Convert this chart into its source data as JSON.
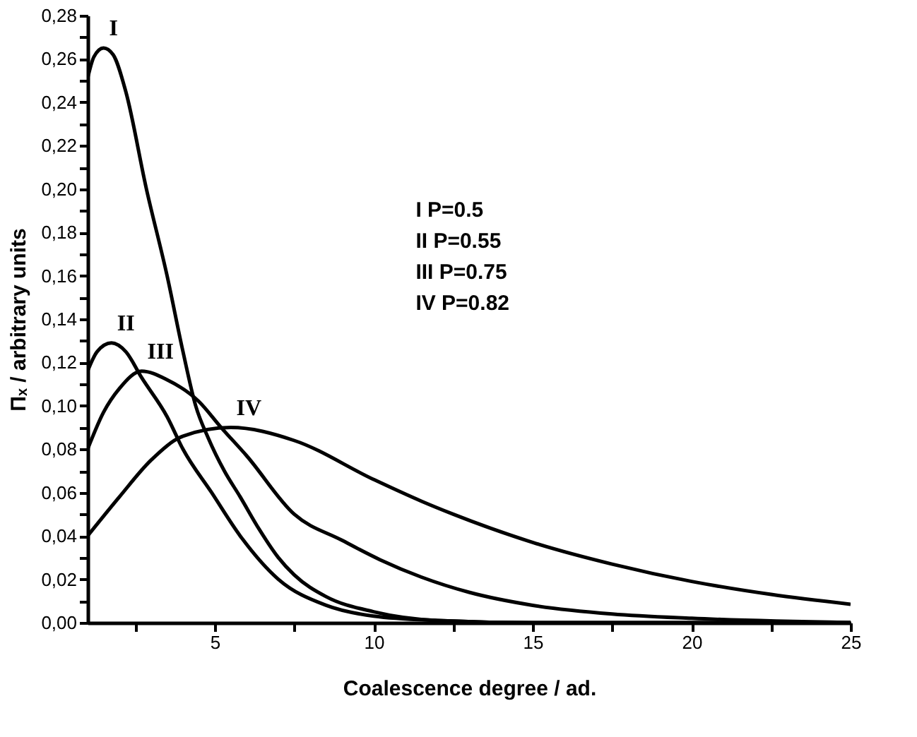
{
  "chart_data": {
    "type": "line",
    "xlabel": "Coalescence degree / ad.",
    "ylabel": "Πₓ / arbitrary units",
    "xlim": [
      1,
      25
    ],
    "ylim": [
      0,
      0.28
    ],
    "xticks": [
      {
        "value": 2.5,
        "label": null
      },
      5,
      {
        "value": 7.5,
        "label": null
      },
      10,
      {
        "value": 12.5,
        "label": null
      },
      15,
      {
        "value": 17.5,
        "label": null
      },
      20,
      {
        "value": 22.5,
        "label": null
      },
      25
    ],
    "yticks": [
      {
        "value": 0,
        "label": "0,00"
      },
      {
        "value": 0.01,
        "label": null
      },
      {
        "value": 0.02,
        "label": "0,02"
      },
      {
        "value": 0.03,
        "label": null
      },
      {
        "value": 0.04,
        "label": "0,04"
      },
      {
        "value": 0.05,
        "label": null
      },
      {
        "value": 0.06,
        "label": "0,06"
      },
      {
        "value": 0.07,
        "label": null
      },
      {
        "value": 0.08,
        "label": "0,08"
      },
      {
        "value": 0.09,
        "label": null
      },
      {
        "value": 0.1,
        "label": "0,10"
      },
      {
        "value": 0.11,
        "label": null
      },
      {
        "value": 0.12,
        "label": "0,12"
      },
      {
        "value": 0.13,
        "label": null
      },
      {
        "value": 0.14,
        "label": "0,14"
      },
      {
        "value": 0.15,
        "label": null
      },
      {
        "value": 0.16,
        "label": "0,16"
      },
      {
        "value": 0.17,
        "label": null
      },
      {
        "value": 0.18,
        "label": "0,18"
      },
      {
        "value": 0.19,
        "label": null
      },
      {
        "value": 0.2,
        "label": "0,20"
      },
      {
        "value": 0.21,
        "label": null
      },
      {
        "value": 0.22,
        "label": "0,22"
      },
      {
        "value": 0.23,
        "label": null
      },
      {
        "value": 0.24,
        "label": "0,24"
      },
      {
        "value": 0.25,
        "label": null
      },
      {
        "value": 0.26,
        "label": "0,26"
      },
      {
        "value": 0.27,
        "label": null
      },
      {
        "value": 0.28,
        "label": "0,28"
      }
    ],
    "grid": false,
    "legend": false,
    "marker": "none",
    "line_style": "solid",
    "annotations": [
      "I P=0.5",
      "II P=0.55",
      "III P=0.75",
      "IV P=0.82"
    ],
    "series": [
      {
        "name": "I",
        "color": "#000000",
        "x": [
          1,
          1.2,
          1.5,
          1.8,
          2.2,
          2.85,
          3.5,
          4,
          4.4,
          4.8,
          5.3,
          5.8,
          6.4,
          7,
          7.5,
          8.5,
          10,
          12,
          15,
          25
        ],
        "values": [
          0.251,
          0.261,
          0.265,
          0.262,
          0.245,
          0.2,
          0.16,
          0.125,
          0.1,
          0.085,
          0.07,
          0.058,
          0.043,
          0.03,
          0.022,
          0.012,
          0.005,
          0.001,
          0,
          0
        ]
      },
      {
        "name": "II",
        "color": "#000000",
        "x": [
          1,
          1.3,
          1.75,
          2.2,
          2.7,
          3.5,
          4,
          4.9,
          5.8,
          7,
          8.5,
          10,
          12,
          15,
          25
        ],
        "values": [
          0.116,
          0.125,
          0.129,
          0.125,
          0.113,
          0.095,
          0.08,
          0.06,
          0.04,
          0.02,
          0.008,
          0.003,
          0.001,
          0,
          0
        ]
      },
      {
        "name": "III",
        "color": "#000000",
        "x": [
          1,
          1.5,
          2,
          2.7,
          3.5,
          4.5,
          5.2,
          6,
          7.5,
          9,
          10.2,
          11.5,
          13,
          15,
          17.5,
          20,
          25
        ],
        "values": [
          0.08,
          0.097,
          0.108,
          0.116,
          0.112,
          0.102,
          0.09,
          0.077,
          0.05,
          0.038,
          0.029,
          0.021,
          0.014,
          0.008,
          0.004,
          0.002,
          0
        ]
      },
      {
        "name": "IV",
        "color": "#000000",
        "x": [
          1,
          2,
          3,
          4,
          5.5,
          7.5,
          10,
          11.5,
          12.5,
          15,
          17.5,
          20,
          22.5,
          25
        ],
        "values": [
          0.04,
          0.058,
          0.075,
          0.086,
          0.09,
          0.084,
          0.066,
          0.056,
          0.05,
          0.037,
          0.027,
          0.019,
          0.013,
          0.0085
        ]
      }
    ]
  }
}
